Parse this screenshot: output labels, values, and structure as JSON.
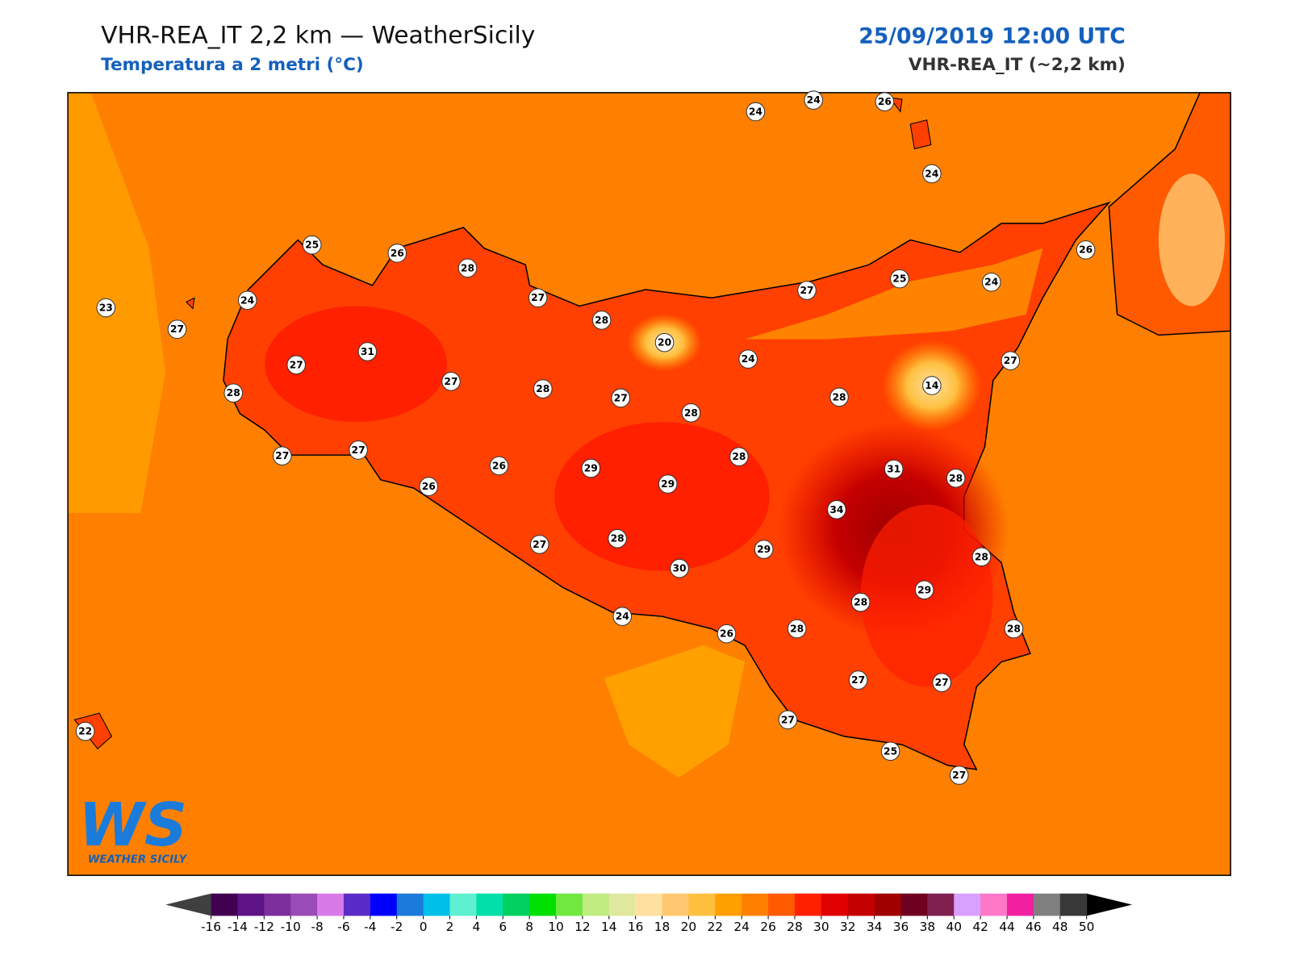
{
  "header": {
    "title": "VHR-REA_IT 2,2 km — WeatherSicily",
    "subtitle": "Temperatura a 2 metri (°C)",
    "datetime": "25/09/2019 12:00 UTC",
    "model": "VHR-REA_IT (~2,2 km)"
  },
  "stations": [
    24,
    24,
    26,
    24,
    25,
    26,
    28,
    27,
    23,
    24,
    27,
    27,
    25,
    24,
    26,
    28,
    20,
    31,
    27,
    24,
    27,
    14,
    28,
    27,
    28,
    27,
    28,
    28,
    27,
    27,
    26,
    26,
    29,
    29,
    28,
    31,
    28,
    34,
    27,
    28,
    30,
    29,
    28,
    29,
    28,
    24,
    26,
    28,
    28,
    27,
    27,
    27,
    25,
    27,
    22
  ],
  "colorbar": {
    "ticks": [
      -16,
      -14,
      -12,
      -10,
      -8,
      -6,
      -4,
      -2,
      0,
      2,
      4,
      6,
      8,
      10,
      12,
      14,
      16,
      18,
      20,
      22,
      24,
      26,
      28,
      30,
      32,
      34,
      36,
      38,
      40,
      42,
      44,
      46,
      48,
      50
    ],
    "colors": [
      "#420050",
      "#5e1387",
      "#7c2f9d",
      "#9a4bb5",
      "#d87ae8",
      "#5b2bc7",
      "#0000ff",
      "#1a7bdb",
      "#00c0e8",
      "#5ef0d0",
      "#00e0a8",
      "#00d060",
      "#00e000",
      "#70e840",
      "#c0ec80",
      "#e0e8a0",
      "#ffe0a0",
      "#ffc870",
      "#ffc040",
      "#ffa000",
      "#ff8000",
      "#ff5a00",
      "#ff2000",
      "#e00000",
      "#c40000",
      "#a00000",
      "#700020",
      "#802050",
      "#d8a0ff",
      "#ff78c8",
      "#f020a0",
      "#808080",
      "#383838"
    ],
    "under_color": "#404040",
    "over_color": "#000000"
  },
  "logo": {
    "mark": "WS",
    "text": "WEATHER SICILY"
  }
}
